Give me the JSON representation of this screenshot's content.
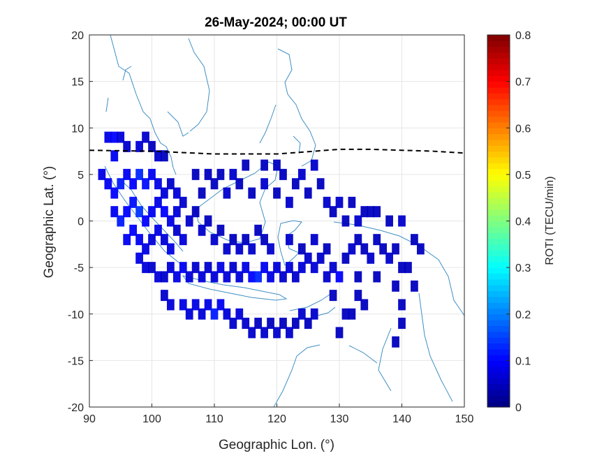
{
  "chart_data": {
    "type": "heatmap",
    "title": "26-May-2024; 00:00 UT",
    "xlabel": "Geographic Lon. (°)",
    "ylabel": "Geographic Lat. (°)",
    "xlim": [
      90,
      150
    ],
    "ylim": [
      -20,
      20
    ],
    "xticks": [
      "90",
      "100",
      "110",
      "120",
      "130",
      "140",
      "150"
    ],
    "yticks": [
      "20",
      "15",
      "10",
      "5",
      "0",
      "-5",
      "-10",
      "-15",
      "-20"
    ],
    "grid": true,
    "colormap": "jet",
    "colorbar": {
      "label": "ROTI (TECU/min)",
      "range": [
        0,
        0.8
      ],
      "ticks": [
        "0",
        "0.1",
        "0.2",
        "0.3",
        "0.4",
        "0.5",
        "0.6",
        "0.7",
        "0.8"
      ]
    },
    "magnetic_equator": {
      "style": "dashed",
      "color": "#000000",
      "points": [
        [
          90,
          7.6
        ],
        [
          100,
          7.5
        ],
        [
          110,
          7.2
        ],
        [
          120,
          7.2
        ],
        [
          126,
          7.5
        ],
        [
          130,
          7.7
        ],
        [
          135,
          7.7
        ],
        [
          140,
          7.6
        ],
        [
          145,
          7.5
        ],
        [
          150,
          7.3
        ]
      ]
    },
    "roti_cells": [
      {
        "lon": 93,
        "lat": 9,
        "roti": 0.08
      },
      {
        "lon": 94,
        "lat": 9,
        "roti": 0.1
      },
      {
        "lon": 95,
        "lat": 9,
        "roti": 0.07
      },
      {
        "lon": 94,
        "lat": 7,
        "roti": 0.09
      },
      {
        "lon": 96,
        "lat": 8,
        "roti": 0.06
      },
      {
        "lon": 98,
        "lat": 8,
        "roti": 0.07
      },
      {
        "lon": 99,
        "lat": 9,
        "roti": 0.06
      },
      {
        "lon": 100,
        "lat": 8,
        "roti": 0.05
      },
      {
        "lon": 101,
        "lat": 7,
        "roti": 0.06
      },
      {
        "lon": 102,
        "lat": 7,
        "roti": 0.05
      },
      {
        "lon": 92,
        "lat": 5,
        "roti": 0.08
      },
      {
        "lon": 93,
        "lat": 4,
        "roti": 0.09
      },
      {
        "lon": 94,
        "lat": 3,
        "roti": 0.1
      },
      {
        "lon": 95,
        "lat": 4,
        "roti": 0.12
      },
      {
        "lon": 96,
        "lat": 5,
        "roti": 0.09
      },
      {
        "lon": 97,
        "lat": 4,
        "roti": 0.1
      },
      {
        "lon": 98,
        "lat": 5,
        "roti": 0.13
      },
      {
        "lon": 99,
        "lat": 4,
        "roti": 0.11
      },
      {
        "lon": 100,
        "lat": 5,
        "roti": 0.09
      },
      {
        "lon": 101,
        "lat": 4,
        "roti": 0.08
      },
      {
        "lon": 102,
        "lat": 3,
        "roti": 0.07
      },
      {
        "lon": 103,
        "lat": 4,
        "roti": 0.06
      },
      {
        "lon": 104,
        "lat": 3,
        "roti": 0.07
      },
      {
        "lon": 94,
        "lat": 1,
        "roti": 0.09
      },
      {
        "lon": 95,
        "lat": 0,
        "roti": 0.12
      },
      {
        "lon": 96,
        "lat": 1,
        "roti": 0.1
      },
      {
        "lon": 97,
        "lat": 2,
        "roti": 0.11
      },
      {
        "lon": 98,
        "lat": 1,
        "roti": 0.14
      },
      {
        "lon": 99,
        "lat": 0,
        "roti": 0.1
      },
      {
        "lon": 100,
        "lat": 1,
        "roti": 0.09
      },
      {
        "lon": 101,
        "lat": 2,
        "roti": 0.08
      },
      {
        "lon": 102,
        "lat": 1,
        "roti": 0.1
      },
      {
        "lon": 103,
        "lat": 0,
        "roti": 0.08
      },
      {
        "lon": 104,
        "lat": 1,
        "roti": 0.07
      },
      {
        "lon": 105,
        "lat": 2,
        "roti": 0.06
      },
      {
        "lon": 96,
        "lat": -2,
        "roti": 0.09
      },
      {
        "lon": 97,
        "lat": -1,
        "roti": 0.1
      },
      {
        "lon": 98,
        "lat": -2,
        "roti": 0.09
      },
      {
        "lon": 99,
        "lat": -3,
        "roti": 0.08
      },
      {
        "lon": 100,
        "lat": -2,
        "roti": 0.07
      },
      {
        "lon": 101,
        "lat": -1,
        "roti": 0.08
      },
      {
        "lon": 102,
        "lat": -2,
        "roti": 0.07
      },
      {
        "lon": 103,
        "lat": -3,
        "roti": 0.08
      },
      {
        "lon": 104,
        "lat": -1,
        "roti": 0.06
      },
      {
        "lon": 105,
        "lat": -2,
        "roti": 0.07
      },
      {
        "lon": 106,
        "lat": 0,
        "roti": 0.06
      },
      {
        "lon": 107,
        "lat": 1,
        "roti": 0.05
      },
      {
        "lon": 108,
        "lat": -1,
        "roti": 0.06
      },
      {
        "lon": 109,
        "lat": 0,
        "roti": 0.05
      },
      {
        "lon": 110,
        "lat": -2,
        "roti": 0.06
      },
      {
        "lon": 111,
        "lat": -1,
        "roti": 0.05
      },
      {
        "lon": 112,
        "lat": -3,
        "roti": 0.06
      },
      {
        "lon": 113,
        "lat": -2,
        "roti": 0.05
      },
      {
        "lon": 114,
        "lat": -3,
        "roti": 0.06
      },
      {
        "lon": 115,
        "lat": -2,
        "roti": 0.05
      },
      {
        "lon": 116,
        "lat": -3,
        "roti": 0.06
      },
      {
        "lon": 117,
        "lat": -1,
        "roti": 0.05
      },
      {
        "lon": 118,
        "lat": -2,
        "roti": 0.05
      },
      {
        "lon": 119,
        "lat": -3,
        "roti": 0.06
      },
      {
        "lon": 98,
        "lat": -4,
        "roti": 0.08
      },
      {
        "lon": 99,
        "lat": -5,
        "roti": 0.07
      },
      {
        "lon": 100,
        "lat": -5,
        "roti": 0.06
      },
      {
        "lon": 101,
        "lat": -6,
        "roti": 0.07
      },
      {
        "lon": 102,
        "lat": -6,
        "roti": 0.06
      },
      {
        "lon": 103,
        "lat": -5,
        "roti": 0.07
      },
      {
        "lon": 104,
        "lat": -6,
        "roti": 0.08
      },
      {
        "lon": 105,
        "lat": -5,
        "roti": 0.09
      },
      {
        "lon": 106,
        "lat": -6,
        "roti": 0.07
      },
      {
        "lon": 107,
        "lat": -5,
        "roti": 0.06
      },
      {
        "lon": 108,
        "lat": -6,
        "roti": 0.07
      },
      {
        "lon": 109,
        "lat": -5,
        "roti": 0.06
      },
      {
        "lon": 110,
        "lat": -6,
        "roti": 0.07
      },
      {
        "lon": 111,
        "lat": -5,
        "roti": 0.08
      },
      {
        "lon": 112,
        "lat": -6,
        "roti": 0.07
      },
      {
        "lon": 113,
        "lat": -5,
        "roti": 0.06
      },
      {
        "lon": 114,
        "lat": -6,
        "roti": 0.07
      },
      {
        "lon": 115,
        "lat": -5,
        "roti": 0.08
      },
      {
        "lon": 116,
        "lat": -6,
        "roti": 0.1
      },
      {
        "lon": 117,
        "lat": -6,
        "roti": 0.13
      },
      {
        "lon": 118,
        "lat": -5,
        "roti": 0.09
      },
      {
        "lon": 119,
        "lat": -6,
        "roti": 0.08
      },
      {
        "lon": 120,
        "lat": -5,
        "roti": 0.07
      },
      {
        "lon": 121,
        "lat": -6,
        "roti": 0.06
      },
      {
        "lon": 122,
        "lat": -5,
        "roti": 0.07
      },
      {
        "lon": 123,
        "lat": -6,
        "roti": 0.06
      },
      {
        "lon": 124,
        "lat": -5,
        "roti": 0.07
      },
      {
        "lon": 125,
        "lat": -4,
        "roti": 0.06
      },
      {
        "lon": 126,
        "lat": -5,
        "roti": 0.07
      },
      {
        "lon": 127,
        "lat": -4,
        "roti": 0.06
      },
      {
        "lon": 102,
        "lat": -8,
        "roti": 0.06
      },
      {
        "lon": 103,
        "lat": -9,
        "roti": 0.07
      },
      {
        "lon": 105,
        "lat": -9,
        "roti": 0.08
      },
      {
        "lon": 106,
        "lat": -10,
        "roti": 0.07
      },
      {
        "lon": 107,
        "lat": -9,
        "roti": 0.08
      },
      {
        "lon": 108,
        "lat": -10,
        "roti": 0.07
      },
      {
        "lon": 109,
        "lat": -9,
        "roti": 0.08
      },
      {
        "lon": 110,
        "lat": -10,
        "roti": 0.12
      },
      {
        "lon": 111,
        "lat": -9,
        "roti": 0.09
      },
      {
        "lon": 112,
        "lat": -10,
        "roti": 0.07
      },
      {
        "lon": 113,
        "lat": -11,
        "roti": 0.06
      },
      {
        "lon": 114,
        "lat": -10,
        "roti": 0.07
      },
      {
        "lon": 115,
        "lat": -11,
        "roti": 0.06
      },
      {
        "lon": 116,
        "lat": -12,
        "roti": 0.06
      },
      {
        "lon": 117,
        "lat": -11,
        "roti": 0.05
      },
      {
        "lon": 118,
        "lat": -12,
        "roti": 0.06
      },
      {
        "lon": 119,
        "lat": -11,
        "roti": 0.05
      },
      {
        "lon": 120,
        "lat": -12,
        "roti": 0.06
      },
      {
        "lon": 121,
        "lat": -11,
        "roti": 0.05
      },
      {
        "lon": 122,
        "lat": -12,
        "roti": 0.06
      },
      {
        "lon": 123,
        "lat": -11,
        "roti": 0.05
      },
      {
        "lon": 124,
        "lat": -10,
        "roti": 0.06
      },
      {
        "lon": 125,
        "lat": -11,
        "roti": 0.05
      },
      {
        "lon": 126,
        "lat": -10,
        "roti": 0.06
      },
      {
        "lon": 108,
        "lat": 3,
        "roti": 0.05
      },
      {
        "lon": 110,
        "lat": 4,
        "roti": 0.05
      },
      {
        "lon": 112,
        "lat": 3,
        "roti": 0.06
      },
      {
        "lon": 114,
        "lat": 4,
        "roti": 0.05
      },
      {
        "lon": 116,
        "lat": 3,
        "roti": 0.05
      },
      {
        "lon": 118,
        "lat": 4,
        "roti": 0.06
      },
      {
        "lon": 120,
        "lat": 3,
        "roti": 0.05
      },
      {
        "lon": 121,
        "lat": 5,
        "roti": 0.05
      },
      {
        "lon": 122,
        "lat": 2,
        "roti": 0.06
      },
      {
        "lon": 123,
        "lat": 4,
        "roti": 0.05
      },
      {
        "lon": 124,
        "lat": 5,
        "roti": 0.06
      },
      {
        "lon": 125,
        "lat": 3,
        "roti": 0.05
      },
      {
        "lon": 126,
        "lat": 6,
        "roti": 0.06
      },
      {
        "lon": 127,
        "lat": 4,
        "roti": 0.05
      },
      {
        "lon": 128,
        "lat": 2,
        "roti": 0.06
      },
      {
        "lon": 129,
        "lat": 1,
        "roti": 0.05
      },
      {
        "lon": 130,
        "lat": 2,
        "roti": 0.06
      },
      {
        "lon": 131,
        "lat": 0,
        "roti": 0.05
      },
      {
        "lon": 132,
        "lat": 2,
        "roti": 0.05
      },
      {
        "lon": 133,
        "lat": 0,
        "roti": 0.06
      },
      {
        "lon": 134,
        "lat": 1,
        "roti": 0.05
      },
      {
        "lon": 136,
        "lat": 1,
        "roti": 0.05
      },
      {
        "lon": 138,
        "lat": 0,
        "roti": 0.05
      },
      {
        "lon": 140,
        "lat": 0,
        "roti": 0.06
      },
      {
        "lon": 142,
        "lat": -2,
        "roti": 0.05
      },
      {
        "lon": 143,
        "lat": -3,
        "roti": 0.05
      },
      {
        "lon": 122,
        "lat": -2,
        "roti": 0.06
      },
      {
        "lon": 124,
        "lat": -3,
        "roti": 0.05
      },
      {
        "lon": 126,
        "lat": -2,
        "roti": 0.06
      },
      {
        "lon": 128,
        "lat": -3,
        "roti": 0.05
      },
      {
        "lon": 129,
        "lat": -5,
        "roti": 0.06
      },
      {
        "lon": 130,
        "lat": -6,
        "roti": 0.1
      },
      {
        "lon": 131,
        "lat": -4,
        "roti": 0.05
      },
      {
        "lon": 132,
        "lat": -3,
        "roti": 0.06
      },
      {
        "lon": 133,
        "lat": -2,
        "roti": 0.05
      },
      {
        "lon": 134,
        "lat": -3,
        "roti": 0.05
      },
      {
        "lon": 135,
        "lat": -4,
        "roti": 0.06
      },
      {
        "lon": 136,
        "lat": -2,
        "roti": 0.05
      },
      {
        "lon": 137,
        "lat": -3,
        "roti": 0.05
      },
      {
        "lon": 138,
        "lat": -4,
        "roti": 0.06
      },
      {
        "lon": 139,
        "lat": -3,
        "roti": 0.05
      },
      {
        "lon": 140,
        "lat": -5,
        "roti": 0.05
      },
      {
        "lon": 133,
        "lat": -6,
        "roti": 0.05
      },
      {
        "lon": 136,
        "lat": -6,
        "roti": 0.05
      },
      {
        "lon": 139,
        "lat": -7,
        "roti": 0.05
      },
      {
        "lon": 141,
        "lat": -5,
        "roti": 0.05
      },
      {
        "lon": 142,
        "lat": -7,
        "roti": 0.05
      },
      {
        "lon": 128,
        "lat": -6,
        "roti": 0.06
      },
      {
        "lon": 129,
        "lat": -8,
        "roti": 0.05
      },
      {
        "lon": 133,
        "lat": -8,
        "roti": 0.05
      },
      {
        "lon": 134,
        "lat": -9,
        "roti": 0.05
      },
      {
        "lon": 131,
        "lat": -10,
        "roti": 0.05
      },
      {
        "lon": 132,
        "lat": -10,
        "roti": 0.05
      },
      {
        "lon": 140,
        "lat": -9,
        "roti": 0.05
      },
      {
        "lon": 140,
        "lat": -11,
        "roti": 0.05
      },
      {
        "lon": 130,
        "lat": -12,
        "roti": 0.05
      },
      {
        "lon": 139,
        "lat": -13,
        "roti": 0.05
      },
      {
        "lon": 135,
        "lat": 1,
        "roti": 0.05
      },
      {
        "lon": 107,
        "lat": 5,
        "roti": 0.05
      },
      {
        "lon": 109,
        "lat": 5,
        "roti": 0.05
      },
      {
        "lon": 111,
        "lat": 5,
        "roti": 0.05
      },
      {
        "lon": 113,
        "lat": 5,
        "roti": 0.06
      },
      {
        "lon": 115,
        "lat": 6,
        "roti": 0.05
      },
      {
        "lon": 118,
        "lat": 6,
        "roti": 0.05
      },
      {
        "lon": 120,
        "lat": 6,
        "roti": 0.05
      }
    ]
  }
}
